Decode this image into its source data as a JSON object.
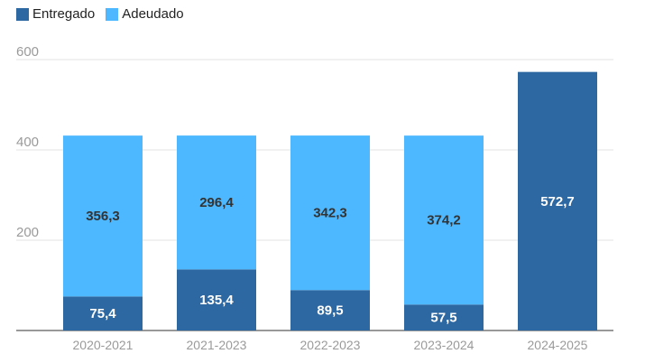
{
  "chart_data": {
    "type": "bar",
    "stacked": true,
    "categories": [
      "2020-2021",
      "2021-2023",
      "2022-2023",
      "2023-2024",
      "2024-2025"
    ],
    "series": [
      {
        "name": "Entregado",
        "color": "#2e68a3",
        "values": [
          75.4,
          135.4,
          89.5,
          57.5,
          572.7
        ],
        "labels": [
          "75,4",
          "135,4",
          "89,5",
          "57,5",
          "572,7"
        ],
        "label_color": "#ffffff"
      },
      {
        "name": "Adeudado",
        "color": "#4db8ff",
        "values": [
          356.3,
          296.4,
          342.3,
          374.2,
          null
        ],
        "labels": [
          "356,3",
          "296,4",
          "342,3",
          "374,2",
          ""
        ],
        "label_color": "#333333"
      }
    ],
    "ylim": [
      0,
      600
    ],
    "yticks": [
      200,
      400,
      600
    ],
    "ytick_labels": [
      "200",
      "400",
      "600"
    ],
    "grid": true,
    "legend": "top-left"
  }
}
